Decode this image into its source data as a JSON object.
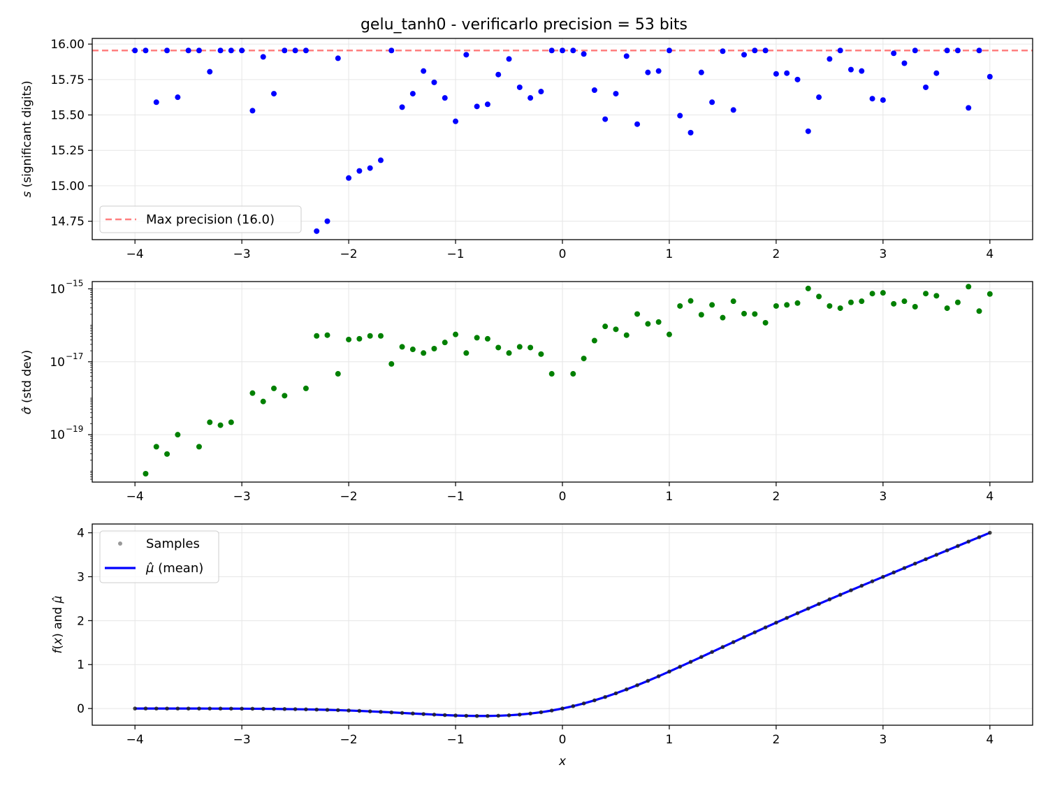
{
  "figure": {
    "title": "gelu_tanh0 - verificarlo precision = 53 bits",
    "colors": {
      "s_points": "#0000ff",
      "sigma_points": "#008000",
      "samples": "#808080",
      "mean_line": "#0000ff",
      "max_precision_line": "#ff7f7f",
      "grid": "#e6e6e6"
    }
  },
  "chart_data": [
    {
      "type": "scatter",
      "panel": "top",
      "ylabel": "s (significant digits)",
      "xlim": [
        -4.4,
        4.4
      ],
      "ylim": [
        14.62,
        16.04
      ],
      "xticks": [
        "−4",
        "−3",
        "−2",
        "−1",
        "0",
        "1",
        "2",
        "3",
        "4"
      ],
      "xtick_values": [
        -4,
        -3,
        -2,
        -1,
        0,
        1,
        2,
        3,
        4
      ],
      "yticks": [
        "14.75",
        "15.00",
        "15.25",
        "15.50",
        "15.75",
        "16.00"
      ],
      "ytick_values": [
        14.75,
        15.0,
        15.25,
        15.5,
        15.75,
        16.0
      ],
      "grid": true,
      "reference_line": {
        "value": 15.955,
        "style": "dashed",
        "label": "Max precision (16.0)"
      },
      "legend": {
        "position": "lower-left",
        "entries": [
          "Max precision (16.0)"
        ]
      },
      "x": [
        -4.0,
        -3.9,
        -3.8,
        -3.7,
        -3.6,
        -3.5,
        -3.4,
        -3.3,
        -3.2,
        -3.1,
        -3.0,
        -2.9,
        -2.8,
        -2.7,
        -2.6,
        -2.5,
        -2.4,
        -2.3,
        -2.2,
        -2.1,
        -2.0,
        -1.9,
        -1.8,
        -1.7,
        -1.6,
        -1.5,
        -1.4,
        -1.3,
        -1.2,
        -1.1,
        -1.0,
        -0.9,
        -0.8,
        -0.7,
        -0.6,
        -0.5,
        -0.4,
        -0.3,
        -0.2,
        -0.1,
        0.0,
        0.1,
        0.2,
        0.3,
        0.4,
        0.5,
        0.6,
        0.7,
        0.8,
        0.9,
        1.0,
        1.1,
        1.2,
        1.3,
        1.4,
        1.5,
        1.6,
        1.7,
        1.8,
        1.9,
        2.0,
        2.1,
        2.2,
        2.3,
        2.4,
        2.5,
        2.6,
        2.7,
        2.8,
        2.9,
        3.0,
        3.1,
        3.2,
        3.3,
        3.4,
        3.5,
        3.6,
        3.7,
        3.8,
        3.9,
        4.0
      ],
      "y": [
        15.955,
        15.955,
        15.59,
        15.955,
        15.625,
        15.955,
        15.955,
        15.805,
        15.955,
        15.955,
        15.955,
        15.53,
        15.91,
        15.65,
        15.955,
        15.955,
        15.955,
        14.68,
        14.75,
        15.9,
        15.055,
        15.105,
        15.125,
        15.18,
        15.955,
        15.555,
        15.65,
        15.81,
        15.73,
        15.62,
        15.455,
        15.925,
        15.56,
        15.575,
        15.785,
        15.895,
        15.695,
        15.62,
        15.665,
        15.955,
        15.955,
        15.955,
        15.93,
        15.675,
        15.47,
        15.65,
        15.915,
        15.435,
        15.8,
        15.81,
        15.955,
        15.495,
        15.375,
        15.8,
        15.59,
        15.95,
        15.535,
        15.925,
        15.955,
        15.955,
        15.79,
        15.795,
        15.75,
        15.385,
        15.625,
        15.895,
        15.955,
        15.82,
        15.81,
        15.615,
        15.605,
        15.935,
        15.865,
        15.955,
        15.695,
        15.795,
        15.955,
        15.955,
        15.55,
        15.955,
        15.77
      ]
    },
    {
      "type": "scatter",
      "panel": "middle",
      "ylabel": "σ̂ (std dev)",
      "yscale": "log",
      "xlim": [
        -4.4,
        4.4
      ],
      "ylim_log10": [
        -20.3,
        -14.8
      ],
      "xticks": [
        "−4",
        "−3",
        "−2",
        "−1",
        "0",
        "1",
        "2",
        "3",
        "4"
      ],
      "xtick_values": [
        -4,
        -3,
        -2,
        -1,
        0,
        1,
        2,
        3,
        4
      ],
      "yticks": [
        "10",
        "10",
        "10"
      ],
      "ytick_exponents": [
        "−19",
        "−17",
        "−15"
      ],
      "ytick_log10": [
        -19,
        -17,
        -15
      ],
      "grid": true,
      "x": [
        -3.9,
        -3.8,
        -3.7,
        -3.6,
        -3.4,
        -3.3,
        -3.2,
        -3.1,
        -2.9,
        -2.8,
        -2.7,
        -2.6,
        -2.4,
        -2.3,
        -2.2,
        -2.1,
        -2.0,
        -1.9,
        -1.8,
        -1.7,
        -1.6,
        -1.5,
        -1.4,
        -1.3,
        -1.2,
        -1.1,
        -1.0,
        -0.9,
        -0.8,
        -0.7,
        -0.6,
        -0.5,
        -0.4,
        -0.3,
        -0.2,
        -0.1,
        0.1,
        0.2,
        0.3,
        0.4,
        0.5,
        0.6,
        0.7,
        0.8,
        0.9,
        1.0,
        1.1,
        1.2,
        1.3,
        1.4,
        1.5,
        1.6,
        1.7,
        1.8,
        1.9,
        2.0,
        2.1,
        2.2,
        2.3,
        2.4,
        2.5,
        2.6,
        2.7,
        2.8,
        2.9,
        3.0,
        3.1,
        3.2,
        3.3,
        3.4,
        3.5,
        3.6,
        3.7,
        3.8,
        3.9,
        4.0
      ],
      "log10_y": [
        -20.07,
        -19.33,
        -19.53,
        -19.0,
        -19.33,
        -18.66,
        -18.74,
        -18.66,
        -17.86,
        -18.09,
        -17.73,
        -17.93,
        -17.73,
        -16.29,
        -16.27,
        -17.33,
        -16.39,
        -16.37,
        -16.29,
        -16.29,
        -17.06,
        -16.59,
        -16.66,
        -16.76,
        -16.64,
        -16.47,
        -16.25,
        -16.76,
        -16.34,
        -16.37,
        -16.61,
        -16.76,
        -16.59,
        -16.61,
        -16.79,
        -17.33,
        -17.33,
        -16.91,
        -16.42,
        -16.03,
        -16.11,
        -16.27,
        -15.69,
        -15.96,
        -15.91,
        -16.25,
        -15.47,
        -15.33,
        -15.71,
        -15.44,
        -15.79,
        -15.34,
        -15.68,
        -15.69,
        -15.93,
        -15.47,
        -15.44,
        -15.39,
        -14.99,
        -15.21,
        -15.47,
        -15.53,
        -15.37,
        -15.34,
        -15.13,
        -15.11,
        -15.41,
        -15.34,
        -15.49,
        -15.13,
        -15.19,
        -15.53,
        -15.37,
        -14.94,
        -15.61,
        -15.14
      ]
    },
    {
      "type": "line",
      "panel": "bottom",
      "xlabel": "x",
      "ylabel": "f(x) and μ̂",
      "xlim": [
        -4.4,
        4.4
      ],
      "ylim": [
        -0.38,
        4.2
      ],
      "xticks": [
        "−4",
        "−3",
        "−2",
        "−1",
        "0",
        "1",
        "2",
        "3",
        "4"
      ],
      "xtick_values": [
        -4,
        -3,
        -2,
        -1,
        0,
        1,
        2,
        3,
        4
      ],
      "yticks": [
        "0",
        "1",
        "2",
        "3",
        "4"
      ],
      "ytick_values": [
        0,
        1,
        2,
        3,
        4
      ],
      "grid": true,
      "legend": {
        "position": "top-left",
        "entries": [
          "Samples",
          "μ̂ (mean)"
        ]
      },
      "series": [
        {
          "name": "Samples",
          "style": "points",
          "function": "gelu_tanh",
          "x_start": -4.0,
          "x_end": 4.0,
          "x_step": 0.1
        },
        {
          "name": "μ̂ (mean)",
          "style": "line",
          "function": "gelu_tanh",
          "x_start": -4.0,
          "x_end": 4.0,
          "x_step": 0.1
        }
      ]
    }
  ],
  "legend_labels": {
    "max_precision": "Max precision (16.0)",
    "samples": "Samples",
    "mean_prefix": "μ̂",
    "mean_suffix": " (mean)"
  },
  "axis_labels": {
    "top_y_var": "s",
    "top_y_rest": " (significant digits)",
    "mid_y_var": "σ̂",
    "mid_y_rest": " (std dev)",
    "bot_y_f": "f",
    "bot_y_paren_open": "(",
    "bot_y_x": "x",
    "bot_y_mid": ") and ",
    "bot_y_mu": "μ̂",
    "bot_x": "x"
  }
}
